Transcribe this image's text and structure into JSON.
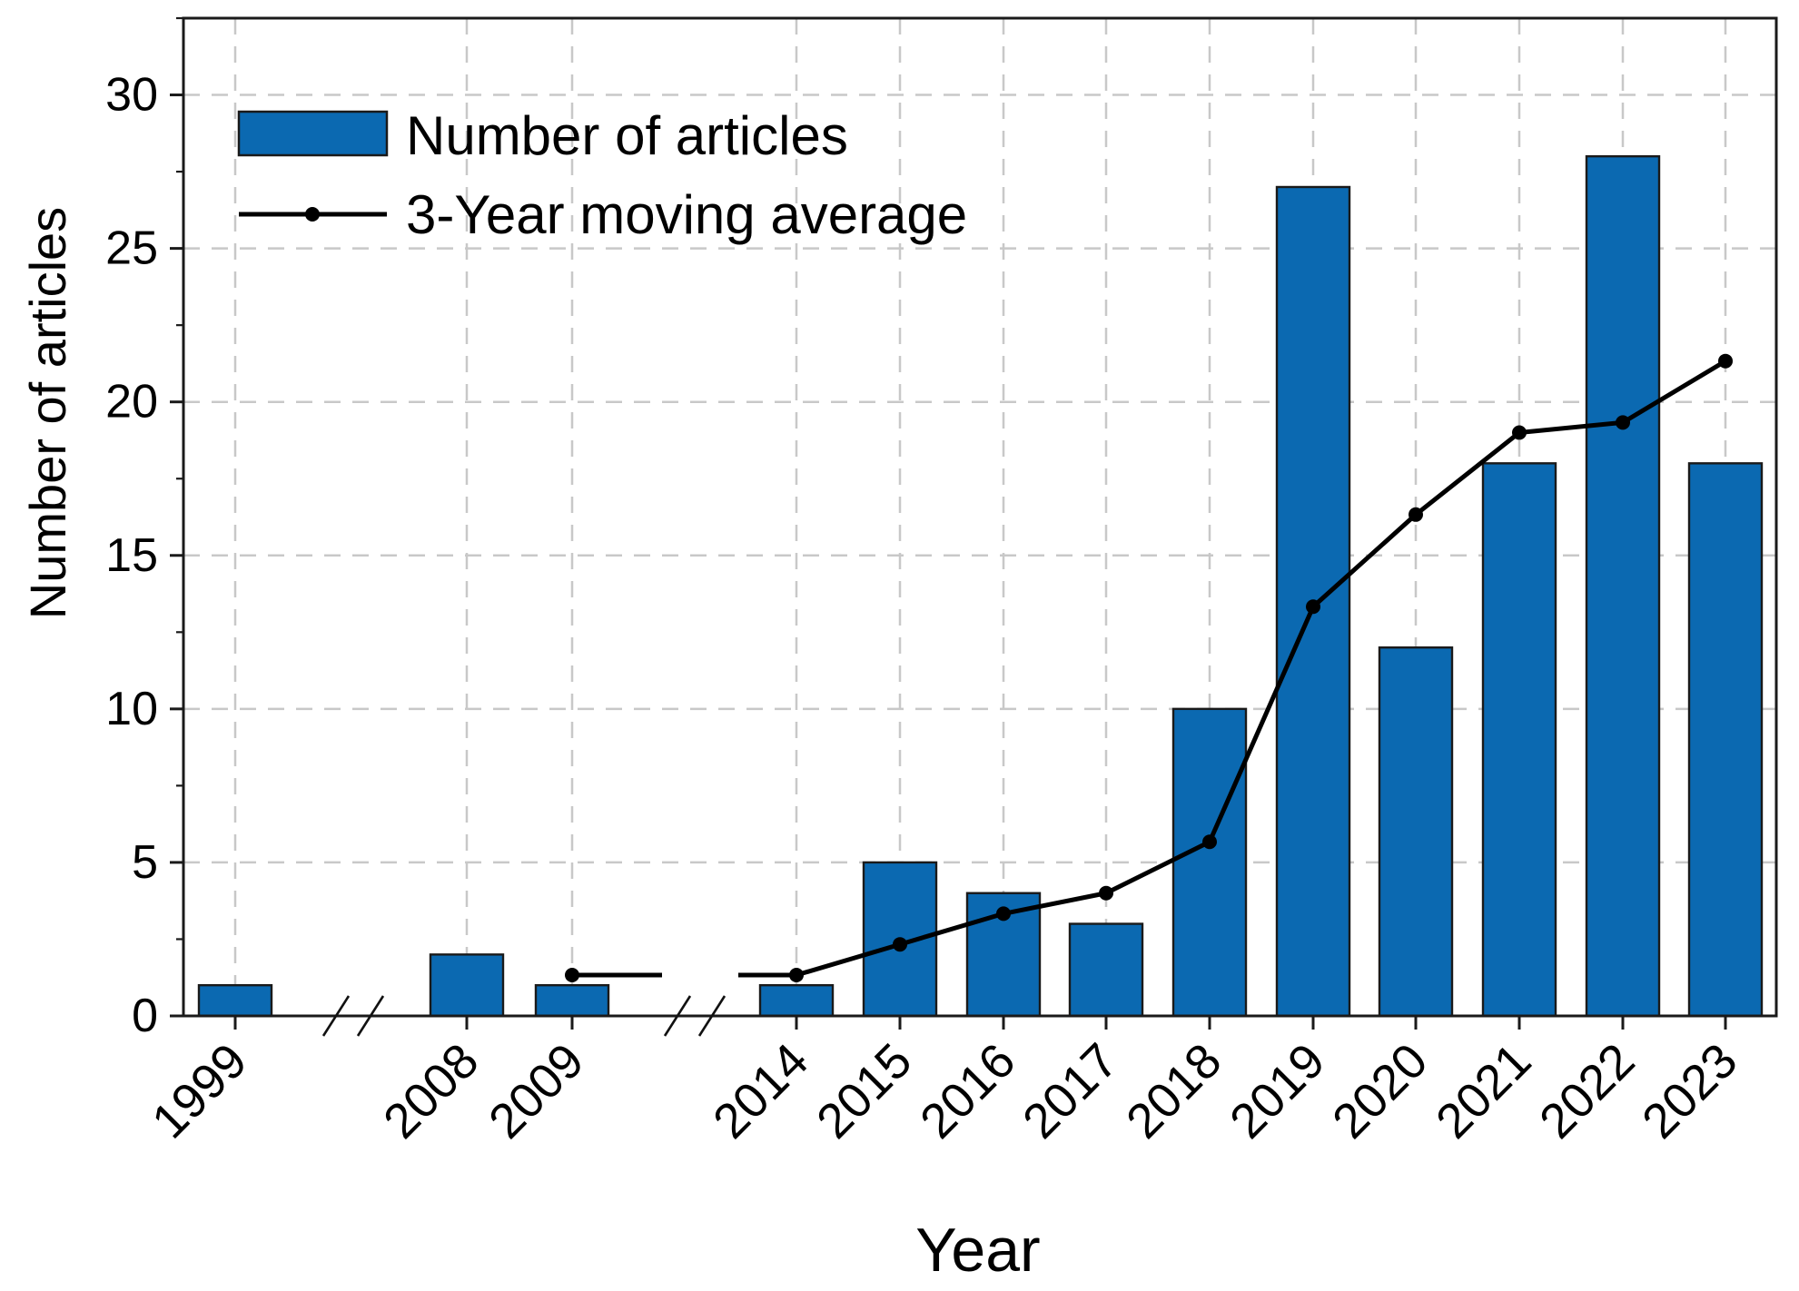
{
  "figure": {
    "title": "",
    "xlabel": "Year",
    "ylabel": "Number of articles"
  },
  "chart_data": {
    "type": "bar",
    "title": "",
    "xlabel": "Year",
    "ylabel": "Number of articles",
    "categories": [
      "1999",
      "2008",
      "2009",
      "2014",
      "2015",
      "2016",
      "2017",
      "2018",
      "2019",
      "2020",
      "2021",
      "2022",
      "2023"
    ],
    "series": [
      {
        "name": "Number of articles",
        "type": "bar",
        "color": "#0b69b1",
        "values": [
          1,
          2,
          1,
          1,
          5,
          4,
          3,
          10,
          27,
          12,
          18,
          28,
          18
        ]
      },
      {
        "name": "3-Year moving average",
        "type": "line",
        "color": "#000000",
        "values": [
          null,
          null,
          1.33,
          1.33,
          2.33,
          3.33,
          4.0,
          5.67,
          13.33,
          16.33,
          19.0,
          19.33,
          21.33
        ]
      }
    ],
    "ylim": [
      0,
      32.5
    ],
    "yticks": [
      0,
      5,
      10,
      15,
      20,
      25,
      30
    ],
    "y_minor_step": 2.5,
    "grid": true,
    "grid_style": "dashed",
    "legend_position": "top-left",
    "axis_breaks": [
      {
        "between": [
          "1999",
          "2008"
        ]
      },
      {
        "between": [
          "2009",
          "2014"
        ]
      }
    ],
    "colors": {
      "bar_fill": "#0b69b1",
      "bar_edge": "#1a1a1a",
      "line": "#000000",
      "grid": "#c8c8c8",
      "axis": "#1a1a1a",
      "text": "#000000"
    }
  }
}
